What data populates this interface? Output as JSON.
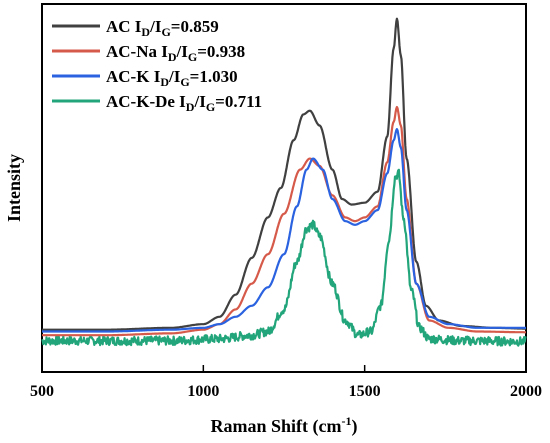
{
  "chart_data": {
    "type": "line",
    "xlabel": "Raman Shift (cm",
    "xlabel_sup": "-1",
    "xlabel_end": ")",
    "ylabel": "Intensity",
    "xlim": [
      500,
      2000
    ],
    "ylim": [
      0,
      1
    ],
    "x_ticks": [
      "500",
      "1000",
      "1500",
      "2000"
    ],
    "y_ticks": [],
    "grid": false,
    "legend_position": "top-left",
    "series": [
      {
        "name_main": "AC I",
        "name_sub1": "D",
        "name_mid": "/I",
        "name_sub2": "G",
        "name_end": "=0.859",
        "color": "#404040",
        "noise": 0,
        "points": [
          [
            500,
            0.115
          ],
          [
            700,
            0.115
          ],
          [
            900,
            0.12
          ],
          [
            1000,
            0.13
          ],
          [
            1050,
            0.15
          ],
          [
            1100,
            0.21
          ],
          [
            1150,
            0.31
          ],
          [
            1200,
            0.42
          ],
          [
            1240,
            0.5
          ],
          [
            1280,
            0.63
          ],
          [
            1310,
            0.7
          ],
          [
            1330,
            0.71
          ],
          [
            1360,
            0.67
          ],
          [
            1400,
            0.55
          ],
          [
            1430,
            0.47
          ],
          [
            1460,
            0.455
          ],
          [
            1500,
            0.46
          ],
          [
            1540,
            0.49
          ],
          [
            1570,
            0.64
          ],
          [
            1590,
            0.88
          ],
          [
            1600,
            0.96
          ],
          [
            1612,
            0.86
          ],
          [
            1630,
            0.58
          ],
          [
            1660,
            0.3
          ],
          [
            1690,
            0.18
          ],
          [
            1730,
            0.14
          ],
          [
            1800,
            0.125
          ],
          [
            1900,
            0.12
          ],
          [
            2000,
            0.118
          ]
        ]
      },
      {
        "name_main": "AC-Na I",
        "name_sub1": "D",
        "name_mid": "/I",
        "name_sub2": "G",
        "name_end": "=0.938",
        "color": "#d65a4a",
        "noise": 0,
        "points": [
          [
            500,
            0.1
          ],
          [
            700,
            0.1
          ],
          [
            900,
            0.105
          ],
          [
            1000,
            0.115
          ],
          [
            1050,
            0.13
          ],
          [
            1100,
            0.17
          ],
          [
            1150,
            0.24
          ],
          [
            1200,
            0.32
          ],
          [
            1250,
            0.43
          ],
          [
            1300,
            0.55
          ],
          [
            1330,
            0.58
          ],
          [
            1360,
            0.56
          ],
          [
            1400,
            0.48
          ],
          [
            1440,
            0.42
          ],
          [
            1470,
            0.41
          ],
          [
            1500,
            0.42
          ],
          [
            1540,
            0.45
          ],
          [
            1570,
            0.57
          ],
          [
            1590,
            0.68
          ],
          [
            1600,
            0.72
          ],
          [
            1612,
            0.67
          ],
          [
            1630,
            0.47
          ],
          [
            1660,
            0.24
          ],
          [
            1700,
            0.14
          ],
          [
            1760,
            0.12
          ],
          [
            1850,
            0.11
          ],
          [
            2000,
            0.108
          ]
        ]
      },
      {
        "name_main": "AC-K I",
        "name_sub1": "D",
        "name_mid": "/I",
        "name_sub2": "G",
        "name_end": "=1.030",
        "color": "#2a62e0",
        "noise": 0,
        "points": [
          [
            500,
            0.11
          ],
          [
            700,
            0.11
          ],
          [
            900,
            0.115
          ],
          [
            1000,
            0.12
          ],
          [
            1050,
            0.13
          ],
          [
            1100,
            0.15
          ],
          [
            1150,
            0.18
          ],
          [
            1200,
            0.23
          ],
          [
            1250,
            0.32
          ],
          [
            1290,
            0.45
          ],
          [
            1320,
            0.55
          ],
          [
            1340,
            0.58
          ],
          [
            1370,
            0.55
          ],
          [
            1400,
            0.47
          ],
          [
            1440,
            0.41
          ],
          [
            1470,
            0.4
          ],
          [
            1500,
            0.41
          ],
          [
            1540,
            0.44
          ],
          [
            1570,
            0.54
          ],
          [
            1590,
            0.63
          ],
          [
            1600,
            0.66
          ],
          [
            1612,
            0.61
          ],
          [
            1630,
            0.44
          ],
          [
            1660,
            0.24
          ],
          [
            1700,
            0.15
          ],
          [
            1760,
            0.13
          ],
          [
            1850,
            0.12
          ],
          [
            2000,
            0.12
          ]
        ]
      },
      {
        "name_main": "AC-K-De I",
        "name_sub1": "D",
        "name_mid": "/I",
        "name_sub2": "G",
        "name_end": "=0.711",
        "color": "#22a57a",
        "noise": 0.012,
        "points": [
          [
            500,
            0.085
          ],
          [
            900,
            0.085
          ],
          [
            1050,
            0.09
          ],
          [
            1150,
            0.1
          ],
          [
            1200,
            0.11
          ],
          [
            1250,
            0.17
          ],
          [
            1290,
            0.3
          ],
          [
            1320,
            0.39
          ],
          [
            1340,
            0.4
          ],
          [
            1360,
            0.37
          ],
          [
            1400,
            0.24
          ],
          [
            1440,
            0.14
          ],
          [
            1480,
            0.1
          ],
          [
            1520,
            0.11
          ],
          [
            1550,
            0.18
          ],
          [
            1575,
            0.36
          ],
          [
            1595,
            0.53
          ],
          [
            1605,
            0.54
          ],
          [
            1620,
            0.42
          ],
          [
            1645,
            0.22
          ],
          [
            1670,
            0.12
          ],
          [
            1700,
            0.09
          ],
          [
            1800,
            0.085
          ],
          [
            2000,
            0.083
          ]
        ]
      }
    ]
  }
}
